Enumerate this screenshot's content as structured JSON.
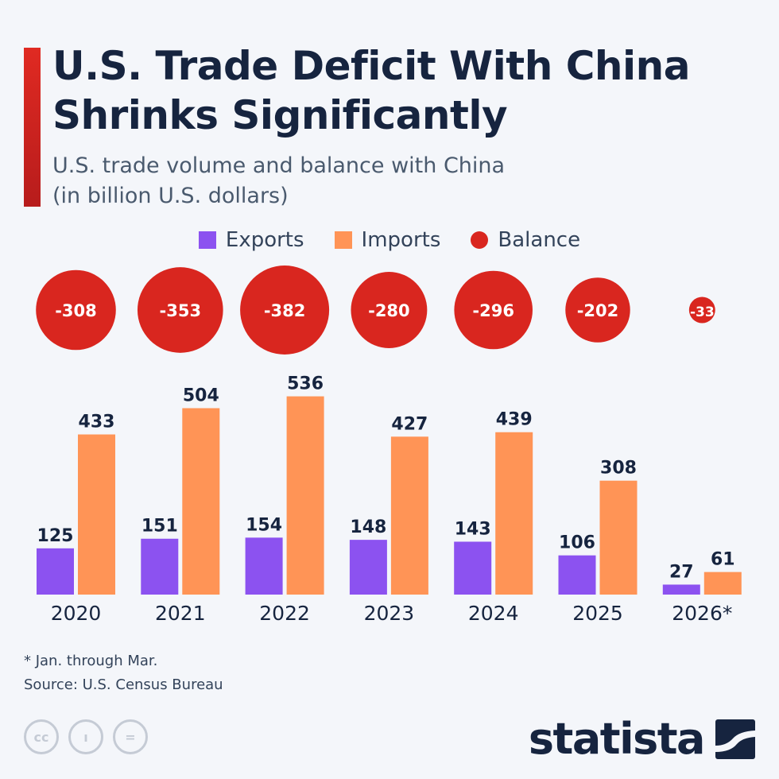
{
  "header": {
    "title": "U.S. Trade Deficit With China\nShrinks Significantly",
    "subtitle": "U.S. trade volume and balance with China\n(in billion U.S. dollars)"
  },
  "legend": {
    "exports": "Exports",
    "imports": "Imports",
    "balance": "Balance"
  },
  "colors": {
    "exports": "#8c52f0",
    "imports": "#ff9456",
    "balance": "#d9261f",
    "accent": "#e02a22",
    "text_dark": "#16243f"
  },
  "chart_data": {
    "type": "bar",
    "categories": [
      "2020",
      "2021",
      "2022",
      "2023",
      "2024",
      "2025",
      "2026*"
    ],
    "series": [
      {
        "name": "Exports",
        "values": [
          125,
          151,
          154,
          148,
          143,
          106,
          27
        ]
      },
      {
        "name": "Imports",
        "values": [
          433,
          504,
          536,
          427,
          439,
          308,
          61
        ]
      },
      {
        "name": "Balance",
        "values": [
          -308,
          -353,
          -382,
          -280,
          -296,
          -202,
          -33
        ]
      }
    ],
    "balance_display": "bubbles",
    "grid": false,
    "legend_position": "top-center"
  },
  "footer": {
    "note": "* Jan. through Mar.",
    "source": "Source: U.S. Census Bureau",
    "cc_icons": [
      "creative-commons-icon",
      "attribution-icon",
      "no-derivatives-icon"
    ],
    "cc_glyphs": [
      "cc",
      "ı",
      "="
    ],
    "brand": "statista"
  }
}
